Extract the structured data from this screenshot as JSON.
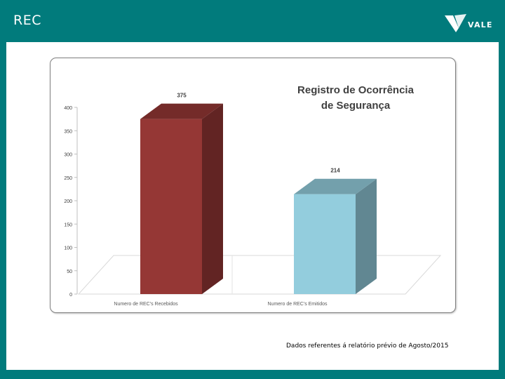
{
  "header": {
    "title": "REC",
    "logo_text": "VALE",
    "logo_icon": "vale-logo-icon"
  },
  "footnote": "Dados referentes á relatório prévio de Agosto/2015",
  "colors": {
    "background": "#017b7c",
    "bar_received": "#953735",
    "bar_emitted": "#93cddd"
  },
  "chart_data": {
    "type": "bar",
    "title_line1": "Registro de Ocorrência",
    "title_line2": "de Segurança",
    "categories": [
      "Numero de REC's Recebidos",
      "Numero de REC's Emitidos"
    ],
    "values": [
      375,
      214
    ],
    "value_labels": [
      "375",
      "214"
    ],
    "ylim": [
      0,
      400
    ],
    "yticks": [
      0,
      50,
      100,
      150,
      200,
      250,
      300,
      350,
      400
    ],
    "bar_colors": [
      "#953735",
      "#93cddd"
    ],
    "style": "3d-column",
    "legend": "none",
    "grid": false
  }
}
